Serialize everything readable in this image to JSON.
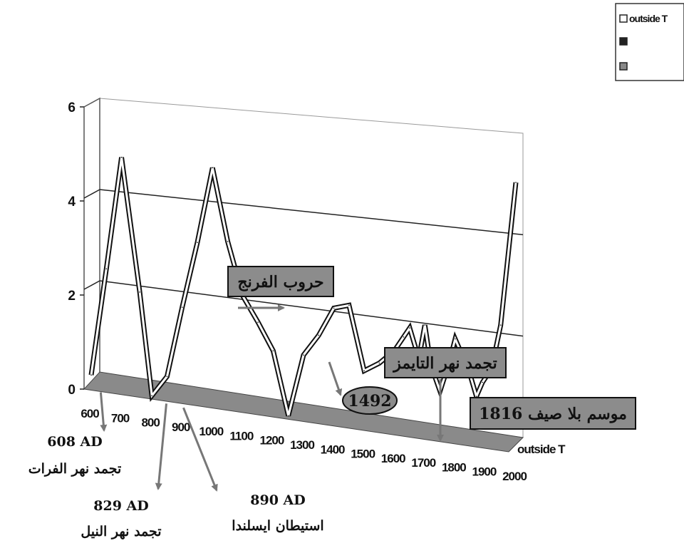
{
  "chart_data": {
    "type": "line",
    "series": [
      {
        "name": "outside T",
        "x": [
          600,
          650,
          700,
          760,
          800,
          850,
          900,
          950,
          1000,
          1050,
          1100,
          1150,
          1200,
          1250,
          1300,
          1350,
          1400,
          1450,
          1500,
          1550,
          1600,
          1630,
          1650,
          1680,
          1700,
          1720,
          1750,
          1780,
          1800,
          1830,
          1850,
          1870,
          1890,
          1920,
          1950,
          2000
        ],
        "y": [
          0.3,
          2.6,
          5.0,
          2.2,
          0.05,
          0.5,
          2.0,
          3.4,
          5.0,
          3.5,
          2.4,
          1.9,
          1.35,
          0.05,
          1.35,
          1.8,
          2.4,
          2.5,
          1.2,
          1.4,
          1.7,
          2.0,
          2.2,
          1.6,
          2.3,
          1.5,
          1.0,
          1.6,
          2.1,
          1.7,
          1.4,
          1.0,
          1.3,
          1.6,
          2.5,
          5.4
        ]
      }
    ],
    "x_ticks": [
      "600",
      "700",
      "800",
      "900",
      "1000",
      "1100",
      "1200",
      "1300",
      "1400",
      "1500",
      "1600",
      "1700",
      "1800",
      "1900",
      "2000"
    ],
    "y_ticks": [
      "0",
      "2",
      "4",
      "6"
    ],
    "ylim": [
      0,
      6
    ],
    "xlim": [
      600,
      2000
    ],
    "grid": true,
    "legend": {
      "position": "top-right",
      "entries": [
        "outside T",
        "",
        ""
      ]
    },
    "depth_axis_label": "outside T",
    "callouts": [
      {
        "text": "حروب الفرنج",
        "x": 1300
      },
      {
        "text": "1492",
        "x": 1492
      },
      {
        "text": "تجمد نهر التايمز",
        "x": 1800
      },
      {
        "text": "موسم بلا صيف 1816",
        "x": 1816
      }
    ],
    "annotations": [
      {
        "year": "608 AD",
        "text": "تجمد نهر الفرات",
        "x": 608
      },
      {
        "year": "829 AD",
        "text": "تجمد نهر النيل",
        "x": 829
      },
      {
        "year": "890 AD",
        "text": "استيطان ايسلندا",
        "x": 890
      }
    ]
  }
}
